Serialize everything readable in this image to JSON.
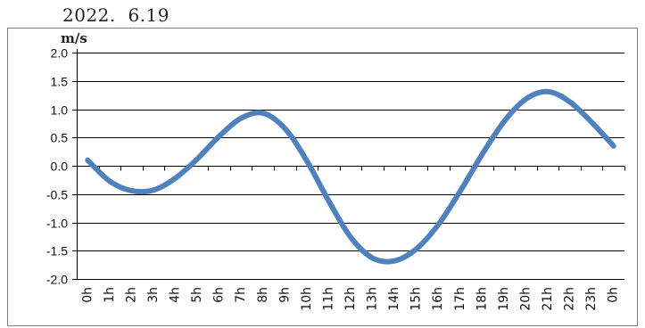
{
  "header": {
    "date": "2022.  6.19"
  },
  "chart_data": {
    "type": "line",
    "unit": "m/s",
    "ylim": [
      -2.0,
      2.0
    ],
    "y_ticks": [
      "2.0",
      "1.5",
      "1.0",
      "0.5",
      "0.0",
      "-0.5",
      "-1.0",
      "-1.5",
      "-2.0"
    ],
    "y_tick_values": [
      2.0,
      1.5,
      1.0,
      0.5,
      0.0,
      -0.5,
      -1.0,
      -1.5,
      -2.0
    ],
    "categories": [
      "0h",
      "1h",
      "2h",
      "3h",
      "4h",
      "5h",
      "6h",
      "7h",
      "8h",
      "9h",
      "10h",
      "11h",
      "12h",
      "13h",
      "14h",
      "15h",
      "16h",
      "17h",
      "18h",
      "19h",
      "20h",
      "21h",
      "22h",
      "23h",
      "0h"
    ],
    "series": [
      {
        "color": "#4F81BD",
        "values": [
          0.1,
          -0.27,
          -0.44,
          -0.43,
          -0.22,
          0.12,
          0.52,
          0.84,
          0.93,
          0.66,
          0.09,
          -0.62,
          -1.26,
          -1.63,
          -1.68,
          -1.47,
          -1.04,
          -0.45,
          0.2,
          0.78,
          1.18,
          1.31,
          1.13,
          0.77,
          0.35
        ]
      }
    ],
    "grid": "horizontal",
    "colors": {
      "line": "#4F81BD",
      "grid": "#000000",
      "frame": "#7f7f7f"
    }
  }
}
